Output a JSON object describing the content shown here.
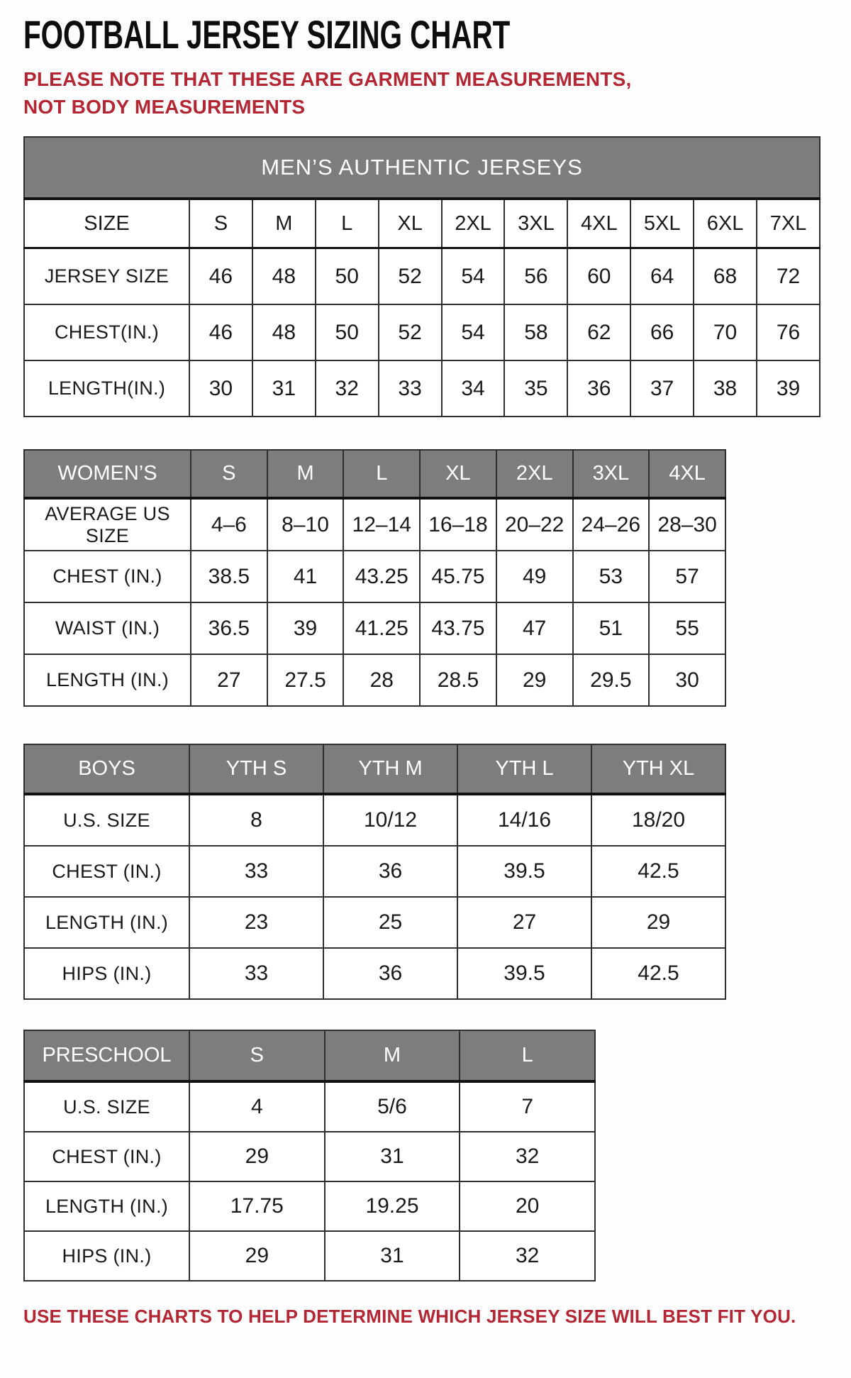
{
  "page": {
    "title": "FOOTBALL JERSEY SIZING CHART",
    "note": "PLEASE NOTE THAT THESE ARE GARMENT MEASUREMENTS, NOT BODY MEASUREMENTS",
    "footer": "USE THESE CHARTS TO HELP DETERMINE WHICH JERSEY SIZE WILL BEST FIT YOU.",
    "colors": {
      "accent_red": "#b22733",
      "header_gray": "#7d7d7d",
      "border_dark": "#2f2f2f"
    }
  },
  "chart_data": [
    {
      "type": "table",
      "id": "mens",
      "banner": "MEN’S AUTHENTIC JERSEYS",
      "header": {
        "label": "SIZE",
        "gray": false,
        "columns": [
          "S",
          "M",
          "L",
          "XL",
          "2XL",
          "3XL",
          "4XL",
          "5XL",
          "6XL",
          "7XL"
        ]
      },
      "rows": [
        {
          "label": "JERSEY SIZE",
          "values": [
            "46",
            "48",
            "50",
            "52",
            "54",
            "56",
            "60",
            "64",
            "68",
            "72"
          ]
        },
        {
          "label": "CHEST(IN.)",
          "values": [
            "46",
            "48",
            "50",
            "52",
            "54",
            "58",
            "62",
            "66",
            "70",
            "76"
          ]
        },
        {
          "label": "LENGTH(IN.)",
          "values": [
            "30",
            "31",
            "32",
            "33",
            "34",
            "35",
            "36",
            "37",
            "38",
            "39"
          ]
        }
      ]
    },
    {
      "type": "table",
      "id": "womens",
      "banner": null,
      "header": {
        "label": "WOMEN’S",
        "gray": true,
        "columns": [
          "S",
          "M",
          "L",
          "XL",
          "2XL",
          "3XL",
          "4XL"
        ]
      },
      "rows": [
        {
          "label": "AVERAGE US SIZE",
          "values": [
            "4–6",
            "8–10",
            "12–14",
            "16–18",
            "20–22",
            "24–26",
            "28–30"
          ]
        },
        {
          "label": "CHEST (IN.)",
          "values": [
            "38.5",
            "41",
            "43.25",
            "45.75",
            "49",
            "53",
            "57"
          ]
        },
        {
          "label": "WAIST (IN.)",
          "values": [
            "36.5",
            "39",
            "41.25",
            "43.75",
            "47",
            "51",
            "55"
          ]
        },
        {
          "label": "LENGTH (IN.)",
          "values": [
            "27",
            "27.5",
            "28",
            "28.5",
            "29",
            "29.5",
            "30"
          ]
        }
      ]
    },
    {
      "type": "table",
      "id": "boys",
      "banner": null,
      "header": {
        "label": "BOYS",
        "gray": true,
        "columns": [
          "YTH S",
          "YTH M",
          "YTH L",
          "YTH XL"
        ]
      },
      "rows": [
        {
          "label": "U.S. SIZE",
          "values": [
            "8",
            "10/12",
            "14/16",
            "18/20"
          ]
        },
        {
          "label": "CHEST (IN.)",
          "values": [
            "33",
            "36",
            "39.5",
            "42.5"
          ]
        },
        {
          "label": "LENGTH (IN.)",
          "values": [
            "23",
            "25",
            "27",
            "29"
          ]
        },
        {
          "label": "HIPS (IN.)",
          "values": [
            "33",
            "36",
            "39.5",
            "42.5"
          ]
        }
      ]
    },
    {
      "type": "table",
      "id": "preschool",
      "banner": null,
      "header": {
        "label": "PRESCHOOL",
        "gray": true,
        "columns": [
          "S",
          "M",
          "L"
        ]
      },
      "rows": [
        {
          "label": "U.S. SIZE",
          "values": [
            "4",
            "5/6",
            "7"
          ]
        },
        {
          "label": "CHEST (IN.)",
          "values": [
            "29",
            "31",
            "32"
          ]
        },
        {
          "label": "LENGTH (IN.)",
          "values": [
            "17.75",
            "19.25",
            "20"
          ]
        },
        {
          "label": "HIPS (IN.)",
          "values": [
            "29",
            "31",
            "32"
          ]
        }
      ]
    }
  ]
}
